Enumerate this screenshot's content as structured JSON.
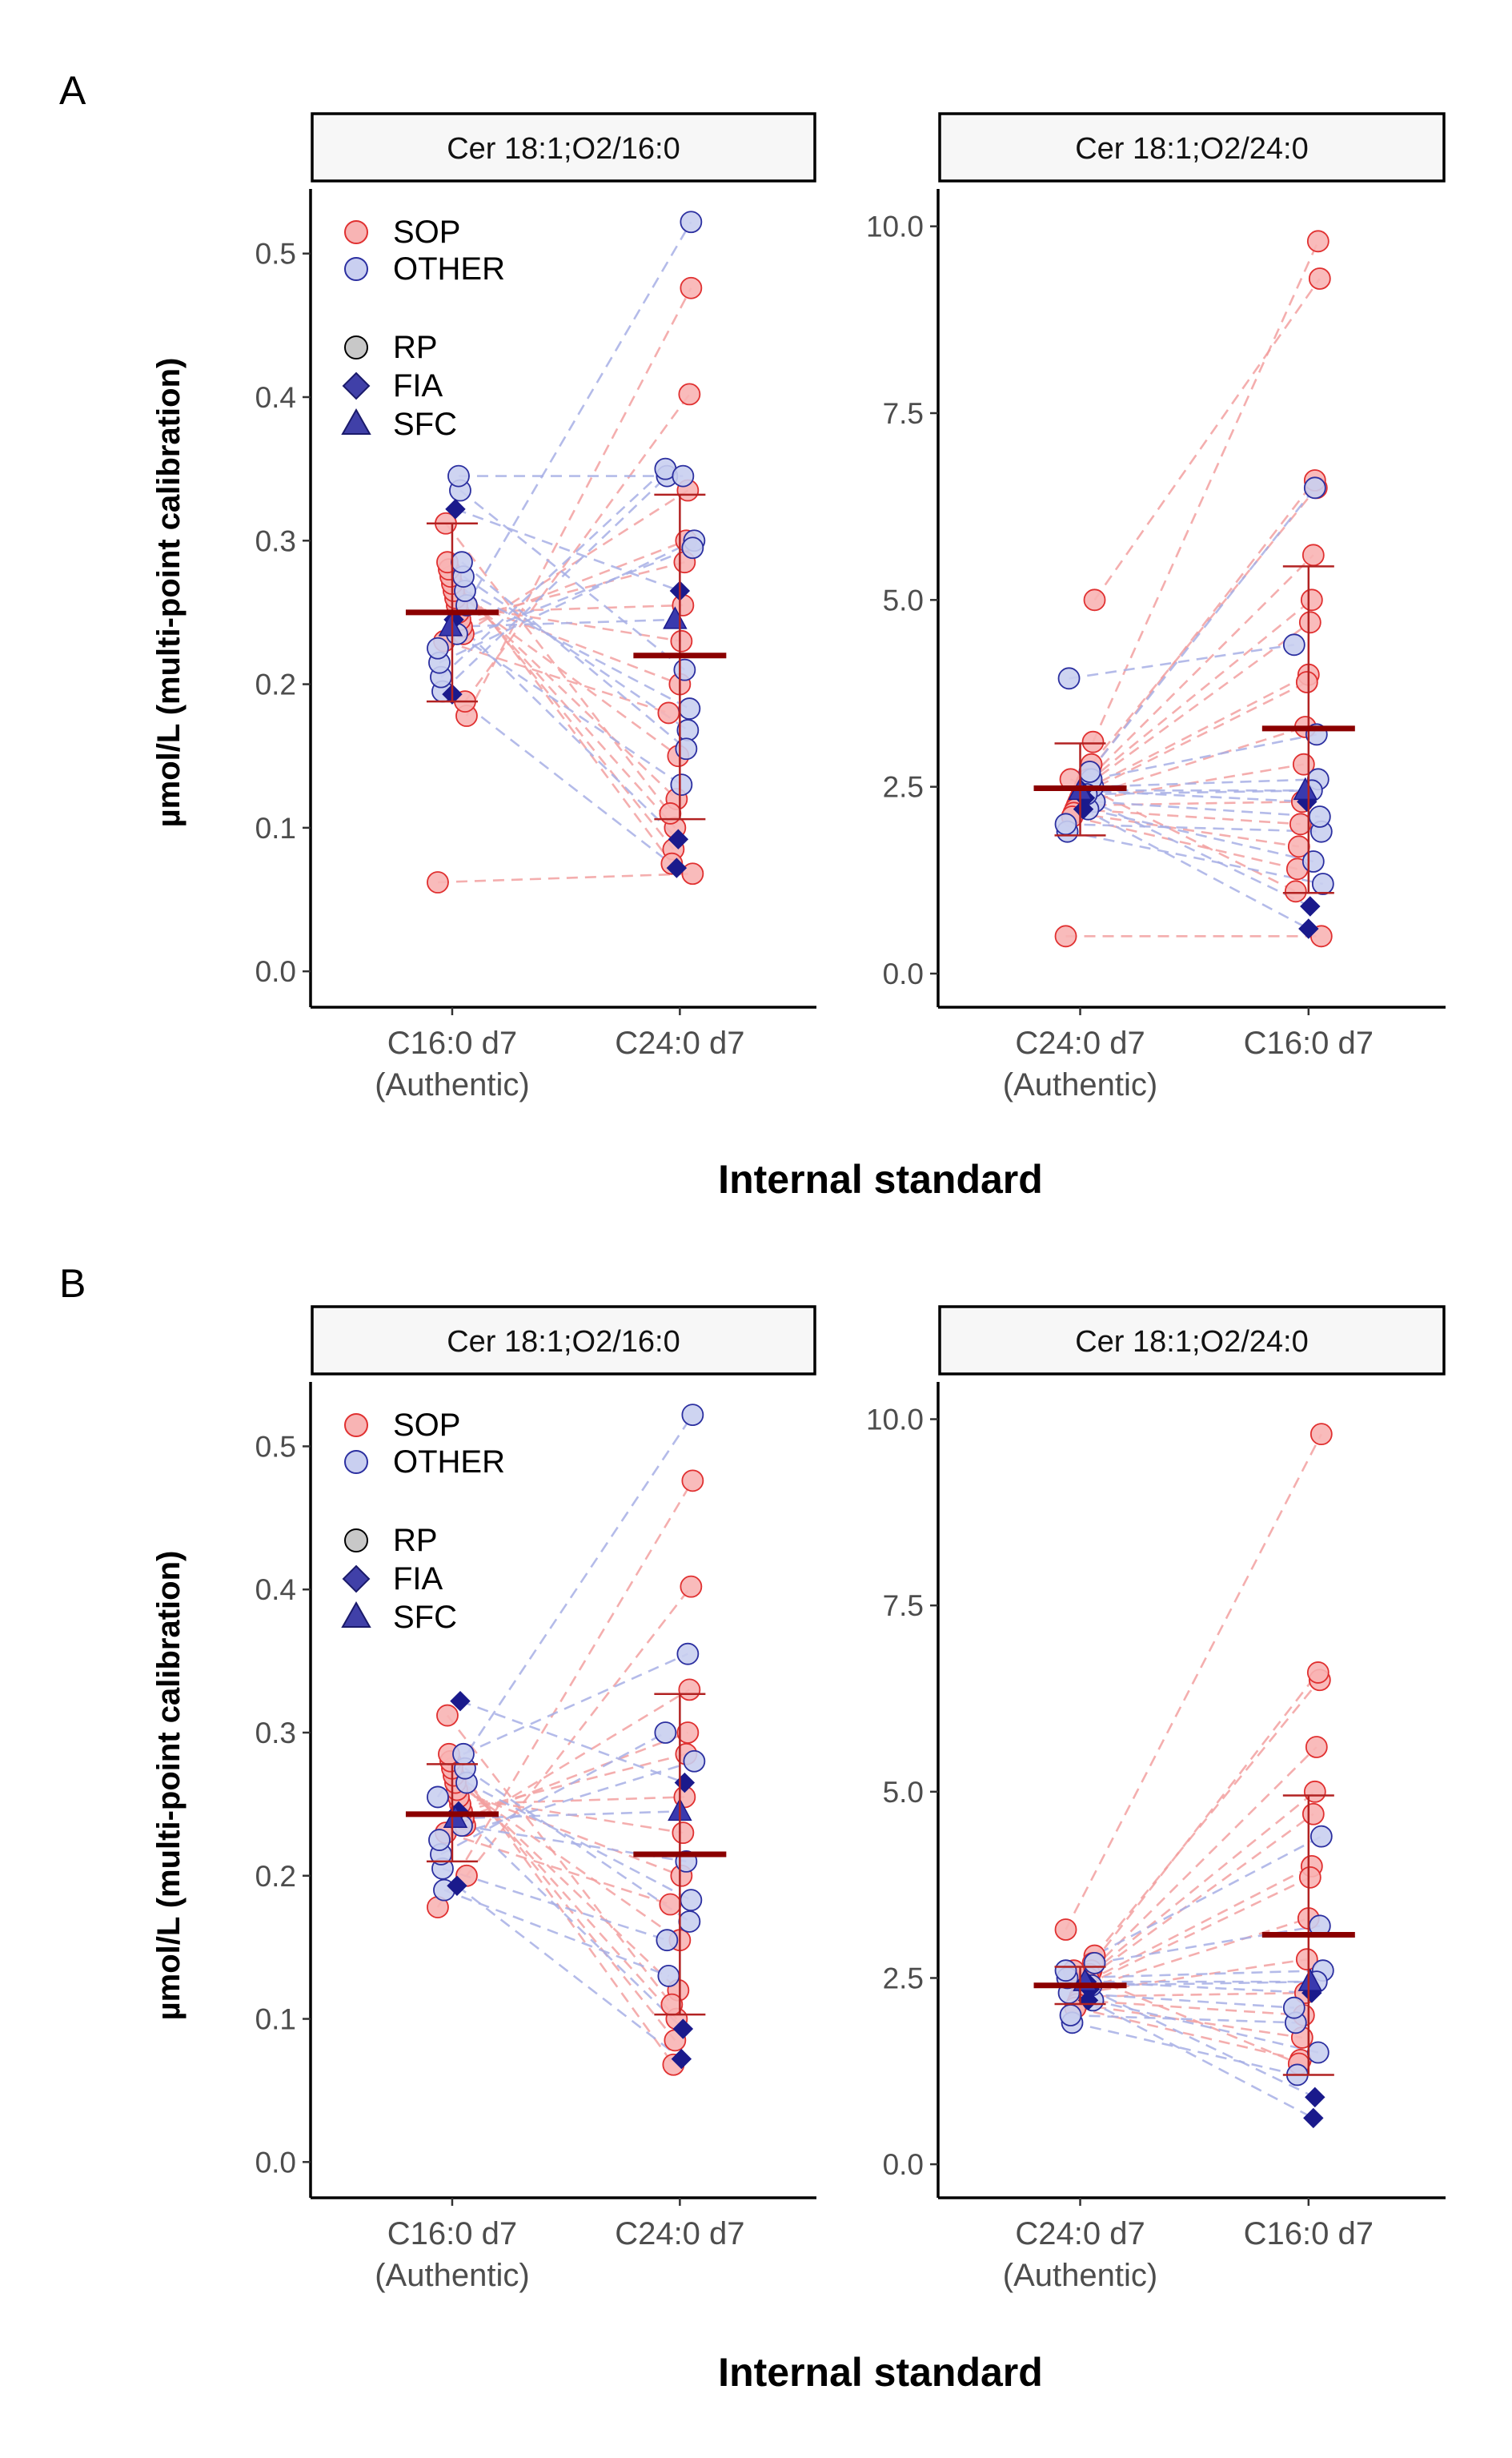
{
  "figure": {
    "panels": [
      {
        "letter": "A",
        "ylabel": "µmol/L (multi-point calibration)",
        "xlabel": "Internal standard"
      },
      {
        "letter": "B",
        "ylabel": "µmol/L (multi-point calibration)",
        "xlabel": "Internal standard"
      }
    ],
    "legend": {
      "groups": [
        {
          "label": "SOP",
          "color": "#F8B4B4",
          "edge": "#E03030"
        },
        {
          "label": "OTHER",
          "color": "#C9CFF0",
          "edge": "#2B2FA0"
        }
      ],
      "platforms": [
        {
          "label": "RP",
          "shape": "circle"
        },
        {
          "label": "FIA",
          "shape": "diamond"
        },
        {
          "label": "SFC",
          "shape": "triangle"
        }
      ]
    },
    "colors": {
      "summary": "#8B0000",
      "errorbar": "#B22222",
      "sop_line": "#F3A0A0",
      "other_line": "#A8B0E6",
      "dark_marker": "#1A1A8C"
    }
  },
  "chart_data": [
    {
      "type": "scatter",
      "panel": "A",
      "title": "Cer 18:1;O2/16:0",
      "categories": [
        "C16:0 d7\n(Authentic)",
        "C24:0 d7"
      ],
      "ylim": [
        -0.025,
        0.545
      ],
      "yticks": [
        0.0,
        0.1,
        0.2,
        0.3,
        0.4,
        0.5
      ],
      "ytick_labels": [
        "0.0",
        "0.1",
        "0.2",
        "0.3",
        "0.4",
        "0.5"
      ],
      "summary": [
        {
          "mean": 0.25,
          "lo": 0.188,
          "hi": 0.312
        },
        {
          "mean": 0.22,
          "lo": 0.106,
          "hi": 0.332
        }
      ],
      "pairs": [
        {
          "g": "SOP",
          "p": "RP",
          "a": 0.062,
          "b": 0.068
        },
        {
          "g": "SOP",
          "p": "RP",
          "a": 0.178,
          "b": 0.476
        },
        {
          "g": "SOP",
          "p": "RP",
          "a": 0.188,
          "b": 0.402
        },
        {
          "g": "SOP",
          "p": "RP",
          "a": 0.235,
          "b": 0.335
        },
        {
          "g": "SOP",
          "p": "RP",
          "a": 0.24,
          "b": 0.3
        },
        {
          "g": "SOP",
          "p": "RP",
          "a": 0.245,
          "b": 0.285
        },
        {
          "g": "SOP",
          "p": "RP",
          "a": 0.25,
          "b": 0.255
        },
        {
          "g": "SOP",
          "p": "RP",
          "a": 0.255,
          "b": 0.23
        },
        {
          "g": "SOP",
          "p": "RP",
          "a": 0.26,
          "b": 0.2
        },
        {
          "g": "SOP",
          "p": "RP",
          "a": 0.265,
          "b": 0.15
        },
        {
          "g": "SOP",
          "p": "RP",
          "a": 0.27,
          "b": 0.12
        },
        {
          "g": "SOP",
          "p": "RP",
          "a": 0.275,
          "b": 0.1
        },
        {
          "g": "SOP",
          "p": "RP",
          "a": 0.28,
          "b": 0.085
        },
        {
          "g": "SOP",
          "p": "RP",
          "a": 0.285,
          "b": 0.075
        },
        {
          "g": "SOP",
          "p": "RP",
          "a": 0.312,
          "b": 0.11
        },
        {
          "g": "SOP",
          "p": "RP",
          "a": 0.23,
          "b": 0.18
        },
        {
          "g": "OTHER",
          "p": "RP",
          "a": 0.195,
          "b": 0.345
        },
        {
          "g": "OTHER",
          "p": "RP",
          "a": 0.205,
          "b": 0.35
        },
        {
          "g": "OTHER",
          "p": "RP",
          "a": 0.215,
          "b": 0.3
        },
        {
          "g": "OTHER",
          "p": "RP",
          "a": 0.225,
          "b": 0.295
        },
        {
          "g": "OTHER",
          "p": "RP",
          "a": 0.255,
          "b": 0.522
        },
        {
          "g": "OTHER",
          "p": "RP",
          "a": 0.265,
          "b": 0.183
        },
        {
          "g": "OTHER",
          "p": "RP",
          "a": 0.275,
          "b": 0.168
        },
        {
          "g": "OTHER",
          "p": "RP",
          "a": 0.285,
          "b": 0.155
        },
        {
          "g": "OTHER",
          "p": "RP",
          "a": 0.335,
          "b": 0.21
        },
        {
          "g": "OTHER",
          "p": "RP",
          "a": 0.345,
          "b": 0.345
        },
        {
          "g": "OTHER",
          "p": "RP",
          "a": 0.235,
          "b": 0.13
        },
        {
          "g": "OTHER",
          "p": "FIA",
          "a": 0.322,
          "b": 0.265
        },
        {
          "g": "OTHER",
          "p": "FIA",
          "a": 0.245,
          "b": 0.092
        },
        {
          "g": "OTHER",
          "p": "FIA",
          "a": 0.193,
          "b": 0.072
        },
        {
          "g": "OTHER",
          "p": "SFC",
          "a": 0.24,
          "b": 0.245
        }
      ]
    },
    {
      "type": "scatter",
      "panel": "A",
      "title": "Cer 18:1;O2/24:0",
      "categories": [
        "C24:0 d7\n(Authentic)",
        "C16:0 d7"
      ],
      "ylim": [
        -0.45,
        10.5
      ],
      "yticks": [
        0.0,
        2.5,
        5.0,
        7.5,
        10.0
      ],
      "ytick_labels": [
        "0.0",
        "2.5",
        "5.0",
        "7.5",
        "10.0"
      ],
      "summary": [
        {
          "mean": 2.48,
          "lo": 1.85,
          "hi": 3.08
        },
        {
          "mean": 3.28,
          "lo": 1.08,
          "hi": 5.45
        }
      ],
      "pairs": [
        {
          "g": "SOP",
          "p": "RP",
          "a": 0.5,
          "b": 0.5
        },
        {
          "g": "SOP",
          "p": "RP",
          "a": 5.0,
          "b": 9.3
        },
        {
          "g": "SOP",
          "p": "RP",
          "a": 3.1,
          "b": 9.8
        },
        {
          "g": "SOP",
          "p": "RP",
          "a": 2.8,
          "b": 6.5
        },
        {
          "g": "SOP",
          "p": "RP",
          "a": 2.7,
          "b": 6.6
        },
        {
          "g": "SOP",
          "p": "RP",
          "a": 2.6,
          "b": 5.6
        },
        {
          "g": "SOP",
          "p": "RP",
          "a": 2.55,
          "b": 5.0
        },
        {
          "g": "SOP",
          "p": "RP",
          "a": 2.5,
          "b": 4.7
        },
        {
          "g": "SOP",
          "p": "RP",
          "a": 2.45,
          "b": 4.0
        },
        {
          "g": "SOP",
          "p": "RP",
          "a": 2.4,
          "b": 3.9
        },
        {
          "g": "SOP",
          "p": "RP",
          "a": 2.35,
          "b": 3.3
        },
        {
          "g": "SOP",
          "p": "RP",
          "a": 2.3,
          "b": 2.8
        },
        {
          "g": "SOP",
          "p": "RP",
          "a": 2.25,
          "b": 2.3
        },
        {
          "g": "SOP",
          "p": "RP",
          "a": 2.2,
          "b": 2.0
        },
        {
          "g": "SOP",
          "p": "RP",
          "a": 2.15,
          "b": 1.7
        },
        {
          "g": "SOP",
          "p": "RP",
          "a": 2.1,
          "b": 1.4
        },
        {
          "g": "SOP",
          "p": "RP",
          "a": 2.6,
          "b": 1.1
        },
        {
          "g": "OTHER",
          "p": "RP",
          "a": 3.95,
          "b": 4.4
        },
        {
          "g": "OTHER",
          "p": "RP",
          "a": 1.9,
          "b": 1.2
        },
        {
          "g": "OTHER",
          "p": "RP",
          "a": 2.0,
          "b": 1.9
        },
        {
          "g": "OTHER",
          "p": "RP",
          "a": 2.3,
          "b": 2.1
        },
        {
          "g": "OTHER",
          "p": "RP",
          "a": 2.5,
          "b": 2.6
        },
        {
          "g": "OTHER",
          "p": "RP",
          "a": 2.6,
          "b": 3.2
        },
        {
          "g": "OTHER",
          "p": "RP",
          "a": 2.7,
          "b": 6.5
        },
        {
          "g": "OTHER",
          "p": "RP",
          "a": 2.2,
          "b": 1.5
        },
        {
          "g": "OTHER",
          "p": "RP",
          "a": 2.4,
          "b": 2.45
        },
        {
          "g": "OTHER",
          "p": "FIA",
          "a": 2.35,
          "b": 0.9
        },
        {
          "g": "OTHER",
          "p": "FIA",
          "a": 2.2,
          "b": 0.6
        },
        {
          "g": "OTHER",
          "p": "FIA",
          "a": 2.45,
          "b": 2.3
        },
        {
          "g": "OTHER",
          "p": "SFC",
          "a": 2.45,
          "b": 2.45
        }
      ]
    },
    {
      "type": "scatter",
      "panel": "B",
      "title": "Cer 18:1;O2/16:0",
      "categories": [
        "C16:0 d7\n(Authentic)",
        "C24:0 d7"
      ],
      "ylim": [
        -0.025,
        0.545
      ],
      "yticks": [
        0.0,
        0.1,
        0.2,
        0.3,
        0.4,
        0.5
      ],
      "ytick_labels": [
        "0.0",
        "0.1",
        "0.2",
        "0.3",
        "0.4",
        "0.5"
      ],
      "summary": [
        {
          "mean": 0.243,
          "lo": 0.21,
          "hi": 0.278
        },
        {
          "mean": 0.215,
          "lo": 0.103,
          "hi": 0.327
        }
      ],
      "pairs": [
        {
          "g": "SOP",
          "p": "RP",
          "a": 0.178,
          "b": 0.476
        },
        {
          "g": "SOP",
          "p": "RP",
          "a": 0.2,
          "b": 0.402
        },
        {
          "g": "SOP",
          "p": "RP",
          "a": 0.235,
          "b": 0.33
        },
        {
          "g": "SOP",
          "p": "RP",
          "a": 0.24,
          "b": 0.3
        },
        {
          "g": "SOP",
          "p": "RP",
          "a": 0.245,
          "b": 0.285
        },
        {
          "g": "SOP",
          "p": "RP",
          "a": 0.25,
          "b": 0.255
        },
        {
          "g": "SOP",
          "p": "RP",
          "a": 0.255,
          "b": 0.23
        },
        {
          "g": "SOP",
          "p": "RP",
          "a": 0.26,
          "b": 0.2
        },
        {
          "g": "SOP",
          "p": "RP",
          "a": 0.265,
          "b": 0.155
        },
        {
          "g": "SOP",
          "p": "RP",
          "a": 0.27,
          "b": 0.12
        },
        {
          "g": "SOP",
          "p": "RP",
          "a": 0.275,
          "b": 0.1
        },
        {
          "g": "SOP",
          "p": "RP",
          "a": 0.28,
          "b": 0.085
        },
        {
          "g": "SOP",
          "p": "RP",
          "a": 0.285,
          "b": 0.068
        },
        {
          "g": "SOP",
          "p": "RP",
          "a": 0.312,
          "b": 0.11
        },
        {
          "g": "SOP",
          "p": "RP",
          "a": 0.23,
          "b": 0.18
        },
        {
          "g": "OTHER",
          "p": "RP",
          "a": 0.19,
          "b": 0.13
        },
        {
          "g": "OTHER",
          "p": "RP",
          "a": 0.205,
          "b": 0.155
        },
        {
          "g": "OTHER",
          "p": "RP",
          "a": 0.215,
          "b": 0.3
        },
        {
          "g": "OTHER",
          "p": "RP",
          "a": 0.225,
          "b": 0.28
        },
        {
          "g": "OTHER",
          "p": "RP",
          "a": 0.255,
          "b": 0.522
        },
        {
          "g": "OTHER",
          "p": "RP",
          "a": 0.265,
          "b": 0.183
        },
        {
          "g": "OTHER",
          "p": "RP",
          "a": 0.275,
          "b": 0.168
        },
        {
          "g": "OTHER",
          "p": "RP",
          "a": 0.285,
          "b": 0.355
        },
        {
          "g": "OTHER",
          "p": "RP",
          "a": 0.235,
          "b": 0.21
        },
        {
          "g": "OTHER",
          "p": "FIA",
          "a": 0.322,
          "b": 0.265
        },
        {
          "g": "OTHER",
          "p": "FIA",
          "a": 0.245,
          "b": 0.093
        },
        {
          "g": "OTHER",
          "p": "FIA",
          "a": 0.193,
          "b": 0.072
        },
        {
          "g": "OTHER",
          "p": "SFC",
          "a": 0.24,
          "b": 0.245
        }
      ]
    },
    {
      "type": "scatter",
      "panel": "B",
      "title": "Cer 18:1;O2/24:0",
      "categories": [
        "C24:0 d7\n(Authentic)",
        "C16:0 d7"
      ],
      "ylim": [
        -0.45,
        10.5
      ],
      "yticks": [
        0.0,
        2.5,
        5.0,
        7.5,
        10.0
      ],
      "ytick_labels": [
        "0.0",
        "2.5",
        "5.0",
        "7.5",
        "10.0"
      ],
      "summary": [
        {
          "mean": 2.4,
          "lo": 2.15,
          "hi": 2.65
        },
        {
          "mean": 3.08,
          "lo": 1.2,
          "hi": 4.95
        }
      ],
      "pairs": [
        {
          "g": "SOP",
          "p": "RP",
          "a": 3.15,
          "b": 9.8
        },
        {
          "g": "SOP",
          "p": "RP",
          "a": 2.8,
          "b": 6.5
        },
        {
          "g": "SOP",
          "p": "RP",
          "a": 2.7,
          "b": 6.6
        },
        {
          "g": "SOP",
          "p": "RP",
          "a": 2.6,
          "b": 5.6
        },
        {
          "g": "SOP",
          "p": "RP",
          "a": 2.55,
          "b": 5.0
        },
        {
          "g": "SOP",
          "p": "RP",
          "a": 2.5,
          "b": 4.7
        },
        {
          "g": "SOP",
          "p": "RP",
          "a": 2.45,
          "b": 4.0
        },
        {
          "g": "SOP",
          "p": "RP",
          "a": 2.4,
          "b": 3.85
        },
        {
          "g": "SOP",
          "p": "RP",
          "a": 2.35,
          "b": 3.3
        },
        {
          "g": "SOP",
          "p": "RP",
          "a": 2.3,
          "b": 2.75
        },
        {
          "g": "SOP",
          "p": "RP",
          "a": 2.25,
          "b": 2.3
        },
        {
          "g": "SOP",
          "p": "RP",
          "a": 2.2,
          "b": 2.0
        },
        {
          "g": "SOP",
          "p": "RP",
          "a": 2.15,
          "b": 1.7
        },
        {
          "g": "SOP",
          "p": "RP",
          "a": 2.1,
          "b": 1.4
        },
        {
          "g": "SOP",
          "p": "RP",
          "a": 2.6,
          "b": 1.35
        },
        {
          "g": "OTHER",
          "p": "RP",
          "a": 1.9,
          "b": 1.2
        },
        {
          "g": "OTHER",
          "p": "RP",
          "a": 2.0,
          "b": 1.9
        },
        {
          "g": "OTHER",
          "p": "RP",
          "a": 2.3,
          "b": 2.1
        },
        {
          "g": "OTHER",
          "p": "RP",
          "a": 2.5,
          "b": 2.6
        },
        {
          "g": "OTHER",
          "p": "RP",
          "a": 2.6,
          "b": 4.4
        },
        {
          "g": "OTHER",
          "p": "RP",
          "a": 2.7,
          "b": 3.2
        },
        {
          "g": "OTHER",
          "p": "RP",
          "a": 2.2,
          "b": 1.5
        },
        {
          "g": "OTHER",
          "p": "RP",
          "a": 2.4,
          "b": 2.45
        },
        {
          "g": "OTHER",
          "p": "FIA",
          "a": 2.35,
          "b": 0.9
        },
        {
          "g": "OTHER",
          "p": "FIA",
          "a": 2.2,
          "b": 0.62
        },
        {
          "g": "OTHER",
          "p": "FIA",
          "a": 2.45,
          "b": 2.3
        },
        {
          "g": "OTHER",
          "p": "SFC",
          "a": 2.45,
          "b": 2.45
        }
      ]
    }
  ]
}
